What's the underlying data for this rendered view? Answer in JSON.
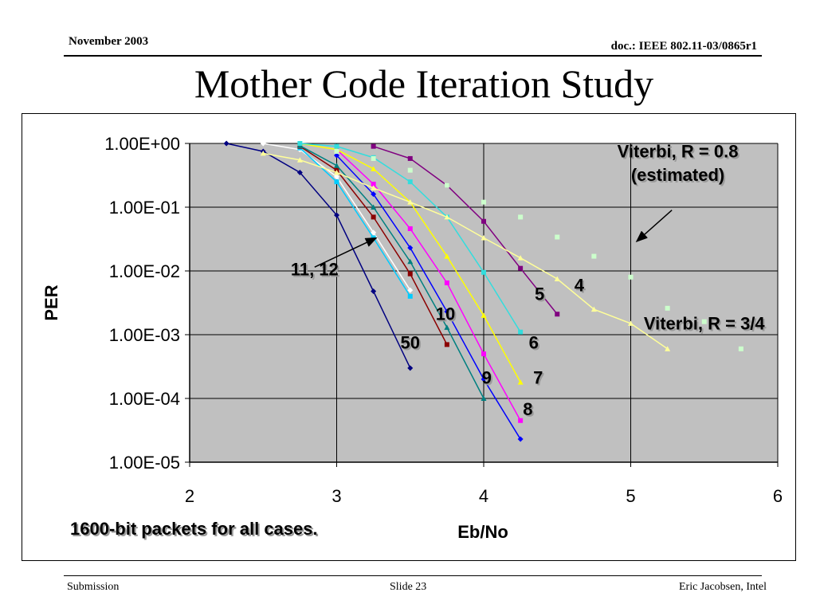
{
  "header": {
    "date": "November 2003",
    "doc": "doc.: IEEE 802.11-03/0865r1"
  },
  "slide_title": "Mother Code Iteration Study",
  "footer": {
    "left": "Submission",
    "center": "Slide 23",
    "right": "Eric Jacobsen, Intel"
  },
  "note": "1600-bit packets for all cases.",
  "chart_data": {
    "type": "line",
    "title": "",
    "xlabel": "Eb/No",
    "ylabel": "PER",
    "xlim": [
      2,
      6
    ],
    "ylim": [
      1e-05,
      1
    ],
    "y_scale": "log",
    "x_ticks": [
      "2",
      "3",
      "4",
      "5",
      "6"
    ],
    "y_ticks": [
      "1.00E+00",
      "1.00E-01",
      "1.00E-02",
      "1.00E-03",
      "1.00E-04",
      "1.00E-05"
    ],
    "grid": true,
    "plot_background": "#c0c0c0",
    "series": [
      {
        "name": "50",
        "color": "#000080",
        "marker": "diamond",
        "x": [
          2.25,
          2.5,
          2.75,
          3.0,
          3.25,
          3.5
        ],
        "y": [
          1.0,
          0.75,
          0.35,
          0.075,
          0.0048,
          0.0003
        ]
      },
      {
        "color": "#ffffff",
        "marker": "diamond",
        "x": [
          2.5,
          2.75,
          3.0,
          3.25,
          3.5
        ],
        "y": [
          1.0,
          0.8,
          0.3,
          0.04,
          0.005
        ]
      },
      {
        "color": "#00ccff",
        "marker": "square",
        "x": [
          2.75,
          3.0,
          3.25,
          3.5
        ],
        "y": [
          0.85,
          0.25,
          0.033,
          0.004
        ]
      },
      {
        "color": "#8b0000",
        "marker": "square",
        "x": [
          2.75,
          3.0,
          3.25,
          3.5,
          3.75
        ],
        "y": [
          0.9,
          0.38,
          0.07,
          0.009,
          0.0007
        ]
      },
      {
        "color": "#008080",
        "marker": "triangle",
        "x": [
          2.75,
          3.0,
          3.25,
          3.5,
          3.75,
          4.0
        ],
        "y": [
          0.92,
          0.45,
          0.1,
          0.014,
          0.0013,
          0.0001
        ]
      },
      {
        "color": "#0000ff",
        "marker": "diamond",
        "x": [
          3.0,
          3.25,
          3.5,
          3.75,
          4.0,
          4.25
        ],
        "y": [
          0.65,
          0.16,
          0.023,
          0.0023,
          0.0002,
          2.3e-05
        ]
      },
      {
        "color": "#ff00ff",
        "marker": "square",
        "x": [
          3.0,
          3.25,
          3.5,
          3.75,
          4.0,
          4.25
        ],
        "y": [
          0.8,
          0.23,
          0.046,
          0.0065,
          0.0005,
          4.5e-05
        ]
      },
      {
        "color": "#ffff00",
        "marker": "triangle",
        "x": [
          2.75,
          3.0,
          3.25,
          3.5,
          3.75,
          4.0,
          4.25
        ],
        "y": [
          1.0,
          0.8,
          0.4,
          0.12,
          0.017,
          0.002,
          0.00018
        ]
      },
      {
        "color": "#33dddd",
        "marker": "square",
        "x": [
          2.75,
          3.0,
          3.25,
          3.5,
          3.75,
          4.0,
          4.25
        ],
        "y": [
          1.0,
          0.9,
          0.6,
          0.25,
          0.07,
          0.0095,
          0.0011
        ]
      },
      {
        "color": "#800080",
        "marker": "square",
        "x": [
          3.25,
          3.5,
          3.75,
          4.0,
          4.25,
          4.5
        ],
        "y": [
          0.9,
          0.58,
          0.22,
          0.06,
          0.011,
          0.0021
        ]
      },
      {
        "name": "Viterbi, R = 3/4",
        "color": "#ffff99",
        "marker": "triangle",
        "x": [
          2.5,
          2.75,
          3.0,
          3.25,
          3.5,
          3.75,
          4.0,
          4.25,
          4.5,
          4.75,
          5.0,
          5.25
        ],
        "y": [
          0.7,
          0.55,
          0.35,
          0.2,
          0.12,
          0.07,
          0.033,
          0.016,
          0.0075,
          0.0025,
          0.0015,
          0.0006
        ]
      },
      {
        "name": "Viterbi, R = 0.8 (estimated)",
        "color": "#ccffcc",
        "marker": "square",
        "line": false,
        "x": [
          3.0,
          3.25,
          3.5,
          3.75,
          4.0,
          4.25,
          4.5,
          4.75,
          5.0,
          5.25,
          5.5,
          5.75
        ],
        "y": [
          0.75,
          0.58,
          0.38,
          0.22,
          0.12,
          0.07,
          0.034,
          0.017,
          0.008,
          0.0026,
          0.0016,
          0.0006
        ]
      }
    ],
    "annotations": [
      {
        "text": "Viterbi, R = 0.8",
        "x": 5.32,
        "y": 0.6
      },
      {
        "text": "(estimated)",
        "x": 5.32,
        "y": 0.26
      },
      {
        "text": "Viterbi, R = 3/4",
        "x": 5.5,
        "y": 0.0012
      },
      {
        "text": "11, 12",
        "x": 2.85,
        "y": 0.0085
      },
      {
        "text": "50",
        "x": 3.5,
        "y": 0.0006
      },
      {
        "text": "10",
        "x": 3.74,
        "y": 0.0017
      },
      {
        "text": "9",
        "x": 4.02,
        "y": 0.00017
      },
      {
        "text": "8",
        "x": 4.3,
        "y": 5.5e-05
      },
      {
        "text": "7",
        "x": 4.37,
        "y": 0.00017
      },
      {
        "text": "6",
        "x": 4.34,
        "y": 0.0006
      },
      {
        "text": "5",
        "x": 4.38,
        "y": 0.0035
      },
      {
        "text": "4",
        "x": 4.65,
        "y": 0.0048
      }
    ],
    "arrows": [
      {
        "from": [
          2.85,
          0.0115
        ],
        "to": [
          3.27,
          0.033
        ]
      },
      {
        "from": [
          5.28,
          0.09
        ],
        "to": [
          5.04,
          0.029
        ]
      }
    ]
  }
}
